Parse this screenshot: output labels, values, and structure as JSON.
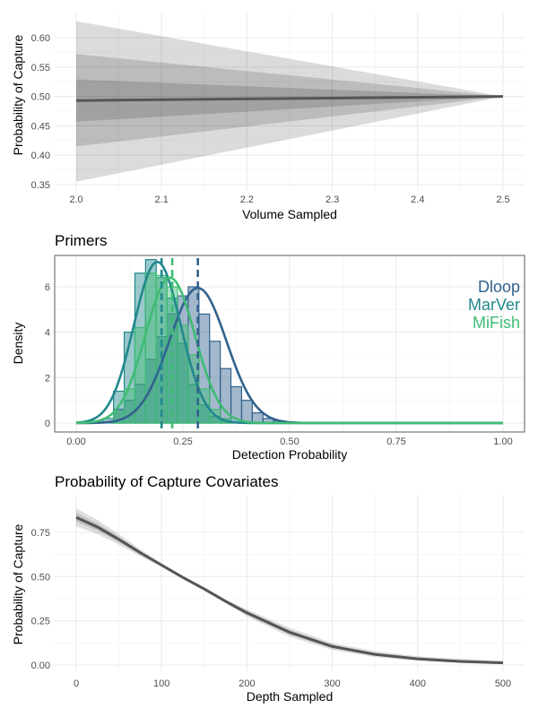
{
  "chart_data": [
    {
      "type": "area",
      "title": "",
      "xlabel": "Volume Sampled",
      "ylabel": "Probability of Capture",
      "xlim": [
        2.0,
        2.5
      ],
      "ylim": [
        0.35,
        0.63
      ],
      "xticks": [
        "2.0",
        "2.1",
        "2.2",
        "2.3",
        "2.4",
        "2.5"
      ],
      "yticks": [
        "0.35",
        "0.40",
        "0.45",
        "0.50",
        "0.55",
        "0.60"
      ],
      "grid": true,
      "x": [
        2.0,
        2.5
      ],
      "mean": [
        0.493,
        0.5
      ],
      "bands": [
        {
          "lower": [
            0.355,
            0.5
          ],
          "upper": [
            0.628,
            0.5
          ]
        },
        {
          "lower": [
            0.415,
            0.5
          ],
          "upper": [
            0.572,
            0.5
          ]
        },
        {
          "lower": [
            0.457,
            0.5
          ],
          "upper": [
            0.529,
            0.5
          ]
        }
      ],
      "colors": {
        "line": "#555555",
        "band": "#000000"
      }
    },
    {
      "type": "bar",
      "title": "Primers",
      "xlabel": "Detection Probability",
      "ylabel": "Density",
      "xlim": [
        0.0,
        1.0
      ],
      "ylim": [
        0,
        7.3
      ],
      "xticks": [
        "0.00",
        "0.25",
        "0.50",
        "0.75",
        "1.00"
      ],
      "yticks": [
        "0",
        "2",
        "4",
        "6"
      ],
      "grid": true,
      "legend": "right",
      "bin_width": 0.025,
      "series": [
        {
          "name": "Dloop",
          "color": "#32628d",
          "mean": 0.285,
          "curve_mean": 0.285,
          "curve_sd": 0.067,
          "curve_peak": 5.95,
          "bins": [
            {
              "x": 0.1,
              "density": 0.6
            },
            {
              "x": 0.125,
              "density": 1.0
            },
            {
              "x": 0.15,
              "density": 1.7
            },
            {
              "x": 0.175,
              "density": 2.8
            },
            {
              "x": 0.2,
              "density": 3.8
            },
            {
              "x": 0.225,
              "density": 4.8
            },
            {
              "x": 0.25,
              "density": 5.6
            },
            {
              "x": 0.275,
              "density": 6.0
            },
            {
              "x": 0.3,
              "density": 4.8
            },
            {
              "x": 0.325,
              "density": 3.6
            },
            {
              "x": 0.35,
              "density": 2.4
            },
            {
              "x": 0.375,
              "density": 1.6
            },
            {
              "x": 0.4,
              "density": 1.0
            },
            {
              "x": 0.425,
              "density": 0.45
            },
            {
              "x": 0.45,
              "density": 0.2
            },
            {
              "x": 0.475,
              "density": 0.1
            }
          ]
        },
        {
          "name": "MarVer",
          "color": "#21888d",
          "mean": 0.2,
          "curve_mean": 0.19,
          "curve_sd": 0.055,
          "curve_peak": 7.1,
          "bins": [
            {
              "x": 0.075,
              "density": 0.2
            },
            {
              "x": 0.1,
              "density": 1.4
            },
            {
              "x": 0.125,
              "density": 4.0
            },
            {
              "x": 0.15,
              "density": 6.6
            },
            {
              "x": 0.175,
              "density": 7.2
            },
            {
              "x": 0.2,
              "density": 6.4
            },
            {
              "x": 0.225,
              "density": 5.5
            },
            {
              "x": 0.25,
              "density": 3.5
            },
            {
              "x": 0.275,
              "density": 1.7
            },
            {
              "x": 0.3,
              "density": 0.8
            },
            {
              "x": 0.325,
              "density": 0.3
            },
            {
              "x": 0.35,
              "density": 0.1
            }
          ]
        },
        {
          "name": "MiFish",
          "color": "#3fbc73",
          "mean": 0.225,
          "curve_mean": 0.22,
          "curve_sd": 0.058,
          "curve_peak": 6.4,
          "bins": [
            {
              "x": 0.1,
              "density": 0.5
            },
            {
              "x": 0.125,
              "density": 1.5
            },
            {
              "x": 0.15,
              "density": 4.2
            },
            {
              "x": 0.175,
              "density": 6.6
            },
            {
              "x": 0.2,
              "density": 6.5
            },
            {
              "x": 0.225,
              "density": 6.0
            },
            {
              "x": 0.25,
              "density": 4.3
            },
            {
              "x": 0.275,
              "density": 3.0
            },
            {
              "x": 0.3,
              "density": 1.5
            },
            {
              "x": 0.325,
              "density": 0.6
            },
            {
              "x": 0.35,
              "density": 0.2
            }
          ]
        }
      ]
    },
    {
      "type": "line",
      "title": "Probability of Capture Covariates",
      "xlabel": "Depth Sampled",
      "ylabel": "Probability of Capture",
      "xlim": [
        0,
        500
      ],
      "ylim": [
        -0.02,
        0.95
      ],
      "xticks": [
        "0",
        "100",
        "200",
        "300",
        "400",
        "500"
      ],
      "yticks": [
        "0.00",
        "0.25",
        "0.50",
        "0.75"
      ],
      "grid": true,
      "x": [
        0,
        25,
        50,
        75,
        100,
        125,
        150,
        175,
        200,
        250,
        300,
        350,
        400,
        450,
        500
      ],
      "mean": [
        0.835,
        0.78,
        0.71,
        0.635,
        0.565,
        0.495,
        0.43,
        0.36,
        0.295,
        0.185,
        0.105,
        0.06,
        0.035,
        0.02,
        0.012
      ],
      "bands": [
        {
          "lower": [
            0.785,
            0.74,
            0.68,
            0.615,
            0.555,
            0.49,
            0.425,
            0.35,
            0.275,
            0.16,
            0.085,
            0.045,
            0.024,
            0.012,
            0.005
          ],
          "upper": [
            0.885,
            0.82,
            0.74,
            0.655,
            0.575,
            0.5,
            0.44,
            0.37,
            0.315,
            0.21,
            0.125,
            0.078,
            0.05,
            0.035,
            0.025
          ]
        },
        {
          "lower": [
            0.81,
            0.76,
            0.695,
            0.625,
            0.56,
            0.493,
            0.428,
            0.355,
            0.285,
            0.172,
            0.095,
            0.052,
            0.03,
            0.016,
            0.008
          ],
          "upper": [
            0.86,
            0.8,
            0.725,
            0.645,
            0.57,
            0.497,
            0.435,
            0.365,
            0.305,
            0.198,
            0.115,
            0.068,
            0.042,
            0.027,
            0.018
          ]
        }
      ],
      "colors": {
        "line": "#555555",
        "band": "#000000"
      }
    }
  ]
}
